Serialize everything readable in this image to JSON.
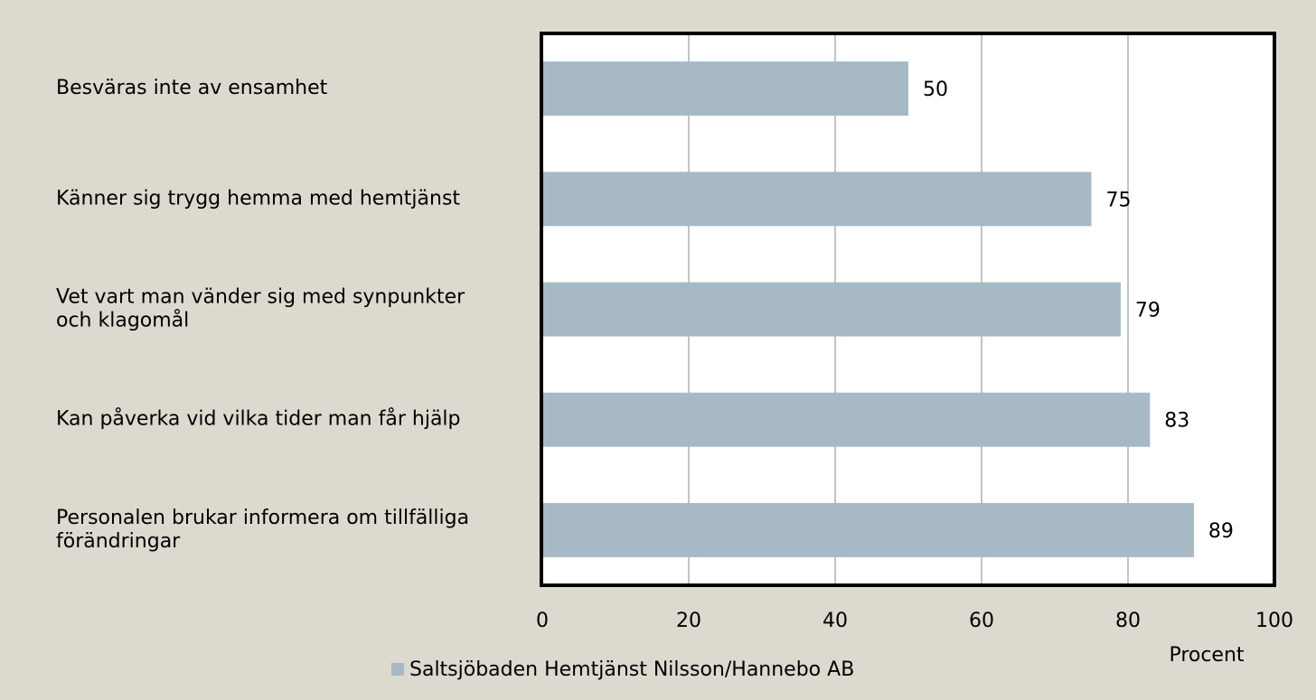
{
  "chart_data": {
    "type": "barh",
    "categories": [
      "Besväras inte av ensamhet",
      "Känner sig trygg hemma med hemtjänst",
      "Vet vart man vänder sig med synpunkter och klagomål",
      "Kan påverka vid vilka tider man får hjälp",
      "Personalen brukar informera om tillfälliga förändringar"
    ],
    "series": [
      {
        "name": "Saltsjöbaden Hemtjänst Nilsson/Hannebo AB",
        "color": "#a6b9c4",
        "values": [
          50,
          75,
          79,
          83,
          89
        ]
      }
    ],
    "xlabel": "Procent",
    "xlim": [
      0,
      100
    ],
    "xticks": [
      0,
      20,
      40,
      60,
      80,
      100
    ],
    "grid": true,
    "legend": "bottom"
  }
}
